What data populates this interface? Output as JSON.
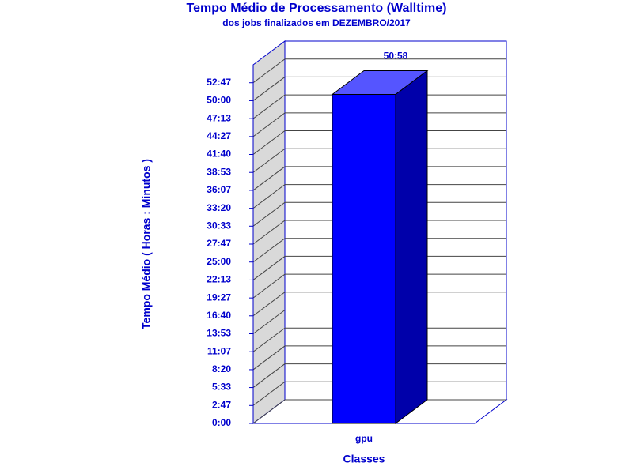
{
  "chart_data": {
    "type": "bar3d",
    "title": "Tempo Médio de Processamento (Walltime)",
    "subtitle": "dos jobs finalizados em DEZEMBRO/2017",
    "ylabel": "Tempo Médio ( Horas : Minutos )",
    "xlabel": "Classes",
    "categories": [
      "gpu"
    ],
    "values": [
      50.97
    ],
    "value_labels": [
      "50:58"
    ],
    "color": "#0000ff",
    "ylim": [
      0,
      55.56
    ],
    "yticks": [
      {
        "value": 0,
        "label": "0:00"
      },
      {
        "value": 2.78,
        "label": "2:47"
      },
      {
        "value": 5.56,
        "label": "5:33"
      },
      {
        "value": 8.33,
        "label": "8:20"
      },
      {
        "value": 11.11,
        "label": "11:07"
      },
      {
        "value": 13.89,
        "label": "13:53"
      },
      {
        "value": 16.67,
        "label": "16:40"
      },
      {
        "value": 19.44,
        "label": "19:27"
      },
      {
        "value": 22.22,
        "label": "22:13"
      },
      {
        "value": 25,
        "label": "25:00"
      },
      {
        "value": 27.78,
        "label": "27:47"
      },
      {
        "value": 30.56,
        "label": "30:33"
      },
      {
        "value": 33.33,
        "label": "33:20"
      },
      {
        "value": 36.11,
        "label": "36:07"
      },
      {
        "value": 38.89,
        "label": "38:53"
      },
      {
        "value": 41.67,
        "label": "41:40"
      },
      {
        "value": 44.44,
        "label": "44:27"
      },
      {
        "value": 47.22,
        "label": "47:13"
      },
      {
        "value": 50,
        "label": "50:00"
      },
      {
        "value": 52.78,
        "label": "52:47"
      }
    ],
    "grid": true
  }
}
